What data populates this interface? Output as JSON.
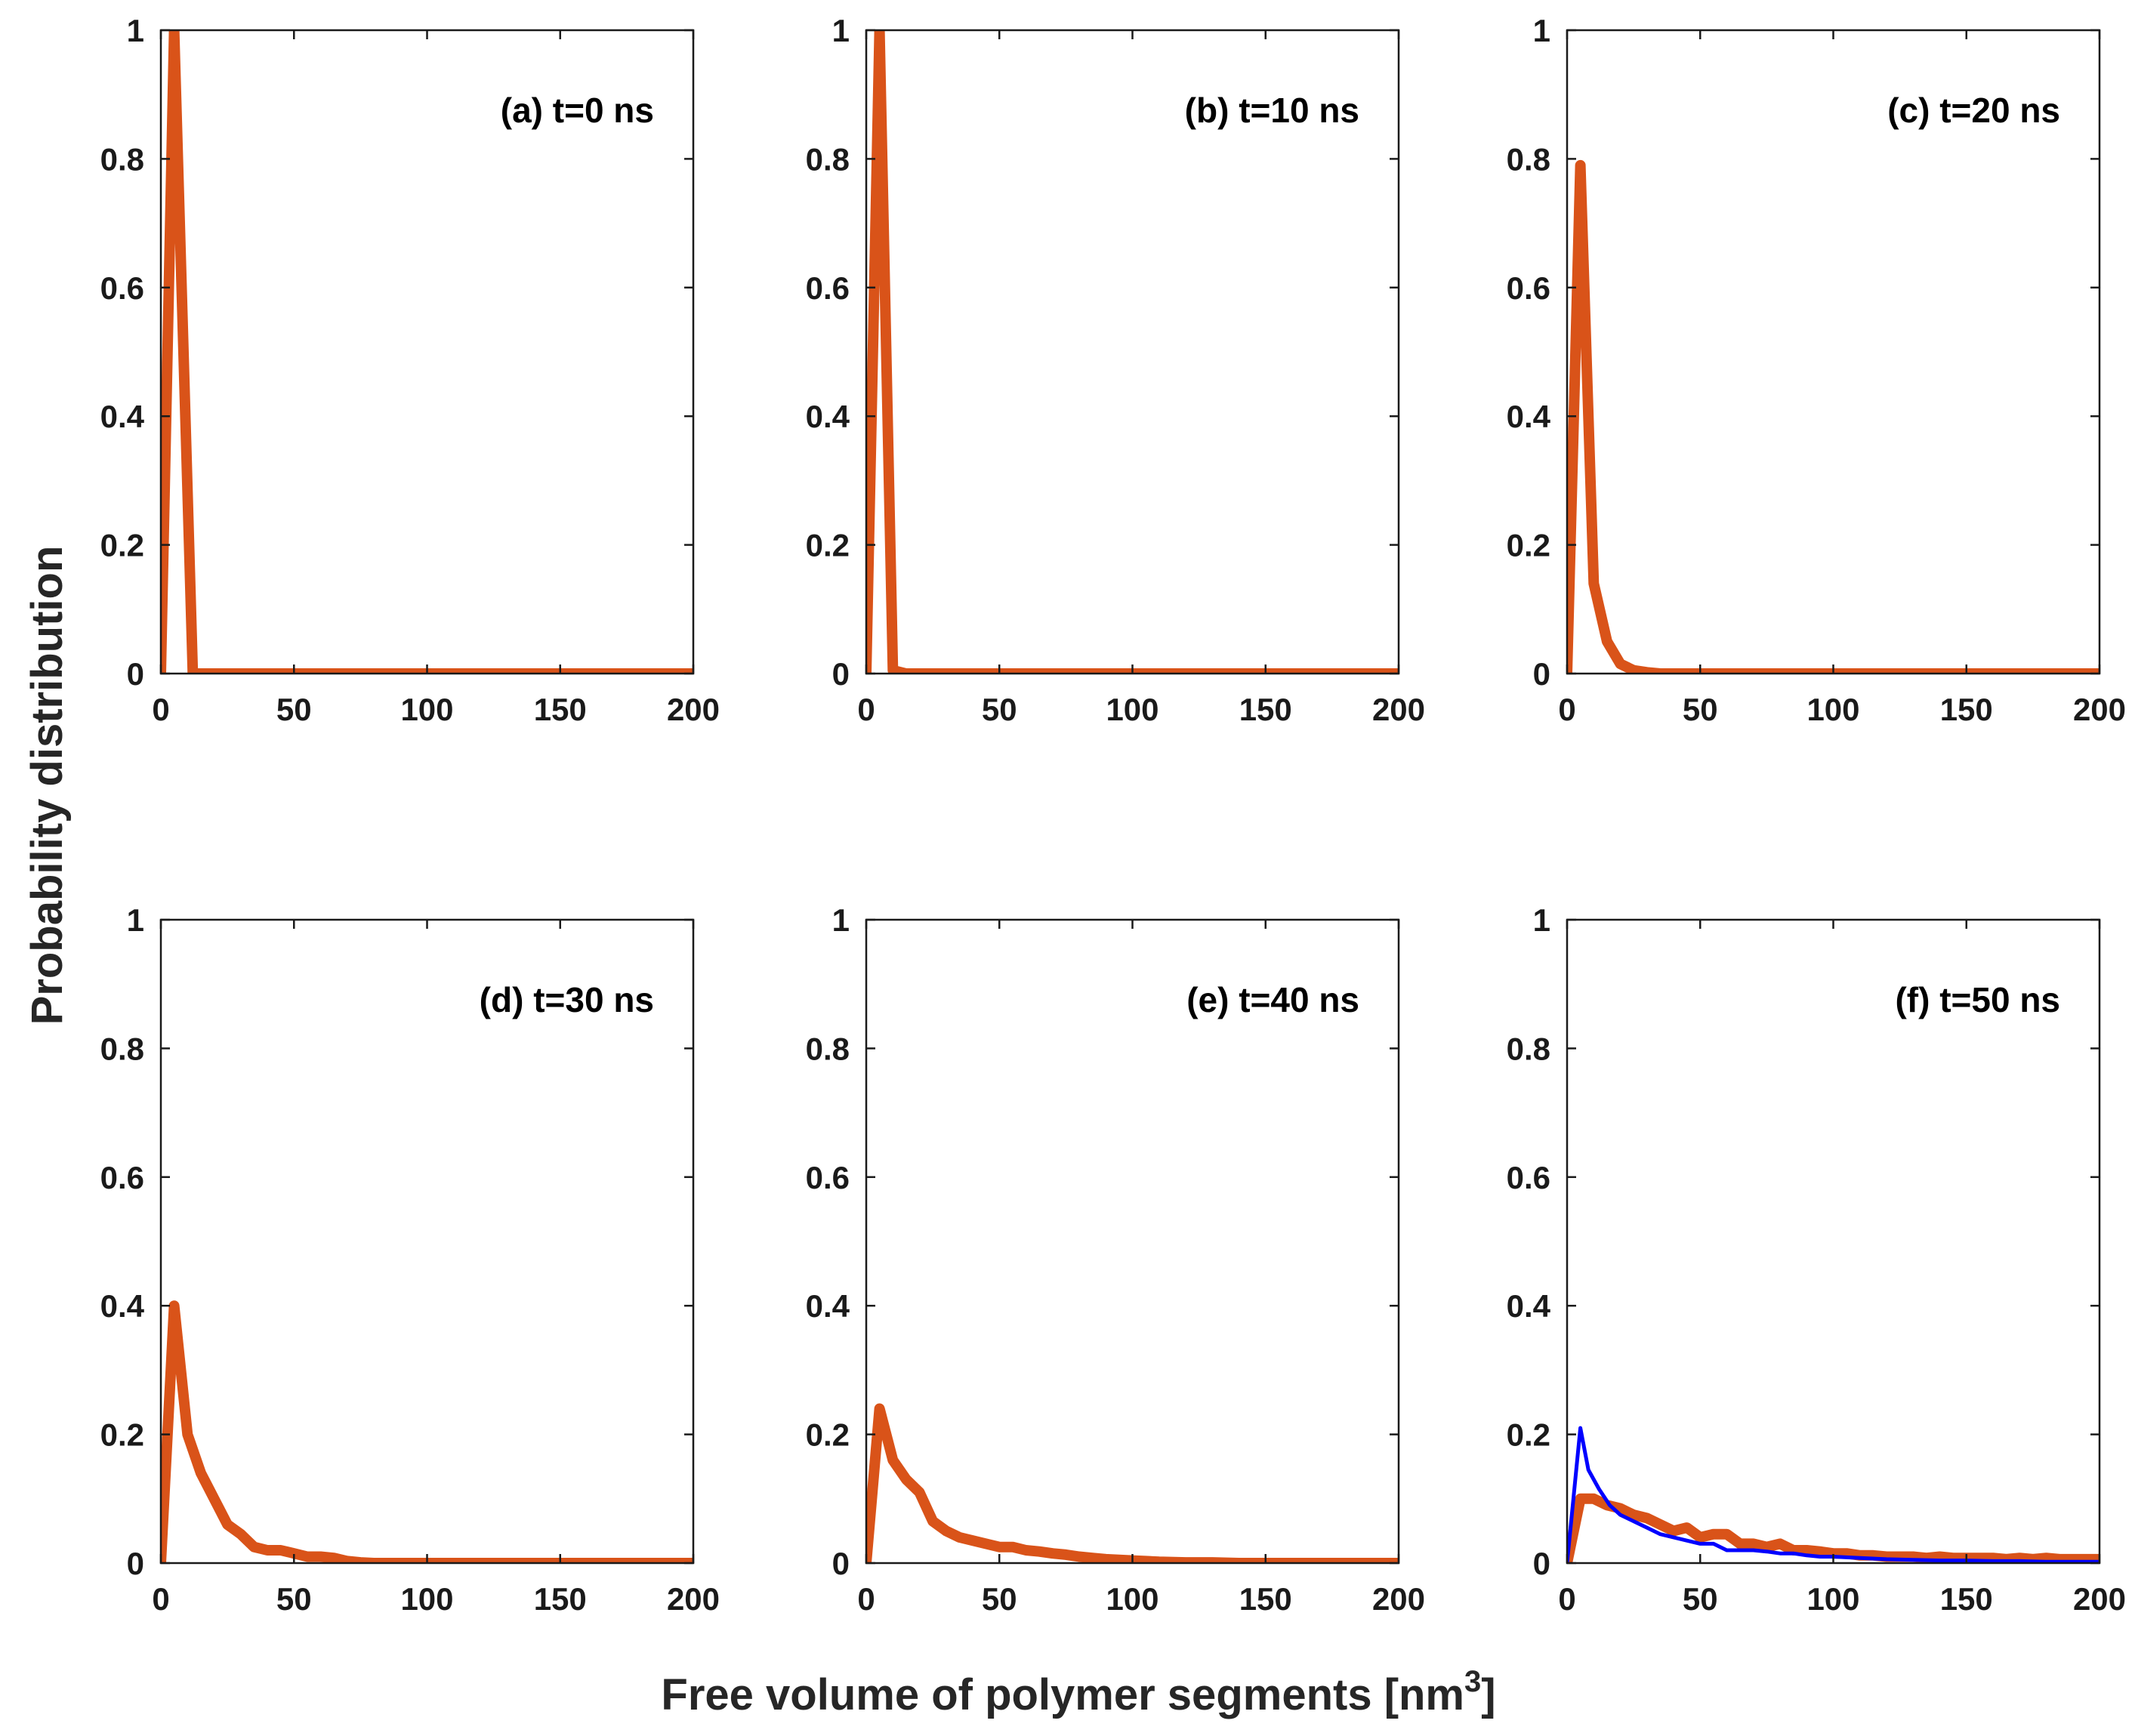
{
  "figure": {
    "ylabel": "Probability distribution",
    "xlabel": {
      "main": "Free volume of polymer segments [nm",
      "sup": "3",
      "end": "]"
    }
  },
  "colors": {
    "series_primary": "#d95319",
    "series_secondary": "#0000ff",
    "axes": "#1a1a1a"
  },
  "chart_data": [
    {
      "type": "line",
      "title": "(a) t=0 ns",
      "xlim": [
        0,
        200
      ],
      "ylim": [
        0,
        1
      ],
      "xticks": [
        0,
        50,
        100,
        150,
        200
      ],
      "yticks": [
        0,
        0.2,
        0.4,
        0.6,
        0.8,
        1
      ],
      "grid": false,
      "series": [
        {
          "color": "#d95319",
          "style": "thick",
          "x": [
            0,
            5,
            12,
            15,
            20,
            50,
            100,
            150,
            200
          ],
          "y": [
            0,
            1,
            0,
            0,
            0,
            0,
            0,
            0,
            0
          ]
        }
      ]
    },
    {
      "type": "line",
      "title": "(b) t=10 ns",
      "xlim": [
        0,
        200
      ],
      "ylim": [
        0,
        1
      ],
      "xticks": [
        0,
        50,
        100,
        150,
        200
      ],
      "yticks": [
        0,
        0.2,
        0.4,
        0.6,
        0.8,
        1
      ],
      "grid": false,
      "series": [
        {
          "color": "#d95319",
          "style": "thick",
          "x": [
            0,
            5,
            10,
            15,
            20,
            50,
            100,
            150,
            200
          ],
          "y": [
            0,
            1,
            0.005,
            0,
            0,
            0,
            0,
            0,
            0
          ]
        }
      ]
    },
    {
      "type": "line",
      "title": "(c) t=20 ns",
      "xlim": [
        0,
        200
      ],
      "ylim": [
        0,
        1
      ],
      "xticks": [
        0,
        50,
        100,
        150,
        200
      ],
      "yticks": [
        0,
        0.2,
        0.4,
        0.6,
        0.8,
        1
      ],
      "grid": false,
      "series": [
        {
          "color": "#d95319",
          "style": "thick",
          "x": [
            0,
            5,
            10,
            15,
            20,
            25,
            30,
            35,
            50,
            100,
            150,
            200
          ],
          "y": [
            0,
            0.79,
            0.14,
            0.05,
            0.015,
            0.005,
            0.002,
            0,
            0,
            0,
            0,
            0
          ]
        }
      ]
    },
    {
      "type": "line",
      "title": "(d) t=30 ns",
      "xlim": [
        0,
        200
      ],
      "ylim": [
        0,
        1
      ],
      "xticks": [
        0,
        50,
        100,
        150,
        200
      ],
      "yticks": [
        0,
        0.2,
        0.4,
        0.6,
        0.8,
        1
      ],
      "grid": false,
      "series": [
        {
          "color": "#d95319",
          "style": "thick",
          "x": [
            0,
            5,
            10,
            15,
            20,
            25,
            30,
            35,
            40,
            45,
            50,
            55,
            60,
            65,
            70,
            75,
            80,
            100,
            150,
            200
          ],
          "y": [
            0,
            0.4,
            0.2,
            0.14,
            0.1,
            0.06,
            0.045,
            0.025,
            0.02,
            0.02,
            0.015,
            0.01,
            0.01,
            0.008,
            0.003,
            0.001,
            0,
            0,
            0,
            0
          ]
        }
      ]
    },
    {
      "type": "line",
      "title": "(e) t=40 ns",
      "xlim": [
        0,
        200
      ],
      "ylim": [
        0,
        1
      ],
      "xticks": [
        0,
        50,
        100,
        150,
        200
      ],
      "yticks": [
        0,
        0.2,
        0.4,
        0.6,
        0.8,
        1
      ],
      "grid": false,
      "series": [
        {
          "color": "#d95319",
          "style": "thick",
          "x": [
            0,
            5,
            10,
            15,
            20,
            25,
            30,
            35,
            40,
            45,
            50,
            55,
            60,
            65,
            70,
            75,
            80,
            85,
            90,
            95,
            100,
            105,
            110,
            120,
            130,
            140,
            150,
            200
          ],
          "y": [
            0,
            0.24,
            0.16,
            0.13,
            0.11,
            0.065,
            0.05,
            0.04,
            0.035,
            0.03,
            0.025,
            0.025,
            0.02,
            0.018,
            0.015,
            0.013,
            0.01,
            0.008,
            0.006,
            0.005,
            0.004,
            0.003,
            0.002,
            0.001,
            0.001,
            0,
            0,
            0
          ]
        }
      ]
    },
    {
      "type": "line",
      "title": "(f) t=50 ns",
      "xlim": [
        0,
        200
      ],
      "ylim": [
        0,
        1
      ],
      "xticks": [
        0,
        50,
        100,
        150,
        200
      ],
      "yticks": [
        0,
        0.2,
        0.4,
        0.6,
        0.8,
        1
      ],
      "grid": false,
      "series": [
        {
          "color": "#d95319",
          "style": "thick",
          "x": [
            0,
            5,
            10,
            15,
            20,
            25,
            30,
            35,
            40,
            45,
            50,
            55,
            60,
            65,
            70,
            75,
            80,
            85,
            90,
            95,
            100,
            105,
            110,
            115,
            120,
            125,
            130,
            135,
            140,
            145,
            150,
            155,
            160,
            165,
            170,
            175,
            180,
            185,
            190,
            195,
            200
          ],
          "y": [
            0,
            0.1,
            0.1,
            0.09,
            0.085,
            0.075,
            0.07,
            0.06,
            0.05,
            0.055,
            0.04,
            0.045,
            0.045,
            0.03,
            0.03,
            0.025,
            0.03,
            0.02,
            0.02,
            0.018,
            0.015,
            0.015,
            0.012,
            0.012,
            0.01,
            0.01,
            0.01,
            0.008,
            0.01,
            0.008,
            0.008,
            0.008,
            0.008,
            0.006,
            0.008,
            0.006,
            0.008,
            0.006,
            0.006,
            0.006,
            0.006
          ]
        },
        {
          "color": "#0000ff",
          "style": "thin",
          "x": [
            0,
            5,
            8,
            12,
            16,
            20,
            25,
            30,
            35,
            40,
            45,
            50,
            55,
            60,
            65,
            70,
            75,
            80,
            85,
            90,
            95,
            100,
            110,
            120,
            130,
            140,
            150,
            160,
            170,
            180,
            190,
            200
          ],
          "y": [
            0,
            0.21,
            0.145,
            0.115,
            0.09,
            0.075,
            0.065,
            0.055,
            0.045,
            0.04,
            0.035,
            0.03,
            0.03,
            0.02,
            0.02,
            0.02,
            0.018,
            0.015,
            0.015,
            0.012,
            0.01,
            0.01,
            0.008,
            0.006,
            0.005,
            0.004,
            0.004,
            0.003,
            0.003,
            0.002,
            0.002,
            0.002
          ]
        }
      ]
    }
  ]
}
